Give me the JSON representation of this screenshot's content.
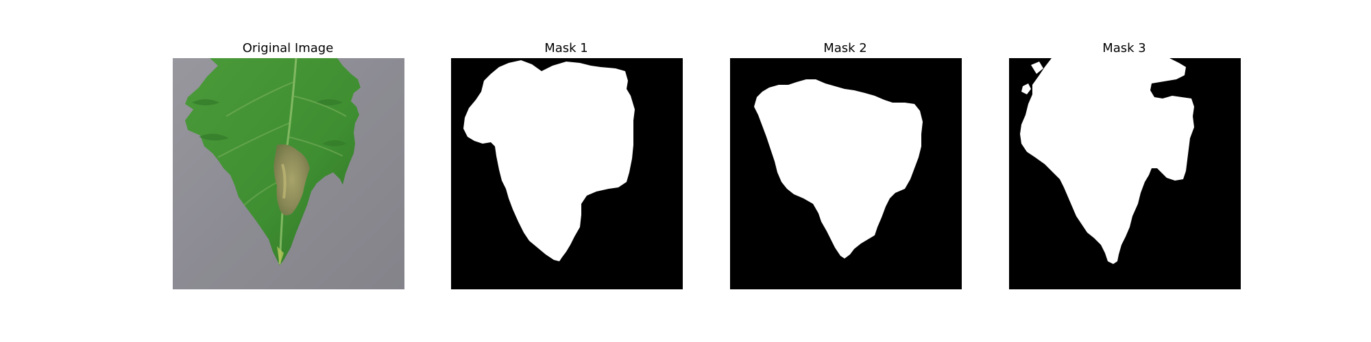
{
  "figure": {
    "panels": [
      {
        "title": "Original Image",
        "kind": "photo",
        "subject": "tomato leaf with brown lesion on gray background"
      },
      {
        "title": "Mask 1",
        "kind": "mask"
      },
      {
        "title": "Mask 2",
        "kind": "mask"
      },
      {
        "title": "Mask 3",
        "kind": "mask"
      }
    ],
    "colors": {
      "figure_background": "#ffffff",
      "mask_background": "#000000",
      "mask_foreground": "#ffffff",
      "leaf_green": "#3f8f32",
      "leaf_dark_green": "#2f7326",
      "lesion_brown": "#8c8a58",
      "photo_background_gray": "#8e8d95"
    }
  }
}
